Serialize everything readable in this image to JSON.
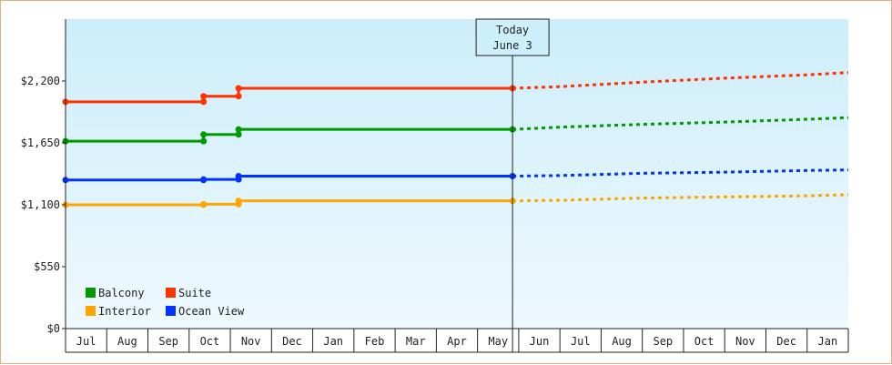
{
  "chart_data": {
    "type": "line",
    "x_labels": [
      "Jul",
      "Aug",
      "Sep",
      "Oct",
      "Nov",
      "Dec",
      "Jan",
      "Feb",
      "Mar",
      "Apr",
      "May",
      "Jun",
      "Jul",
      "Aug",
      "Sep",
      "Oct",
      "Nov",
      "Dec",
      "Jan"
    ],
    "yticks": [
      "$0",
      "$550",
      "$1,100",
      "$1,650",
      "$2,200"
    ],
    "ylim": [
      0,
      2750
    ],
    "xlim": [
      0,
      19
    ],
    "today": {
      "line1": "Today",
      "line2": "June 3",
      "x": 10.85
    },
    "series": [
      {
        "name": "Suite",
        "color": "#ff3300",
        "actual": [
          [
            0,
            2015
          ],
          [
            3.35,
            2015
          ],
          [
            3.35,
            2065
          ],
          [
            4.2,
            2065
          ],
          [
            4.2,
            2135
          ],
          [
            10.85,
            2135
          ]
        ],
        "forecast": [
          [
            10.85,
            2135
          ],
          [
            12,
            2150
          ],
          [
            14,
            2190
          ],
          [
            16,
            2225
          ],
          [
            18,
            2255
          ],
          [
            19,
            2275
          ]
        ]
      },
      {
        "name": "Balcony",
        "color": "#009900",
        "actual": [
          [
            0,
            1665
          ],
          [
            3.35,
            1665
          ],
          [
            3.35,
            1725
          ],
          [
            4.2,
            1725
          ],
          [
            4.2,
            1770
          ],
          [
            10.85,
            1770
          ]
        ],
        "forecast": [
          [
            10.85,
            1770
          ],
          [
            12,
            1790
          ],
          [
            14,
            1815
          ],
          [
            16,
            1835
          ],
          [
            18,
            1860
          ],
          [
            19,
            1875
          ]
        ]
      },
      {
        "name": "Ocean View",
        "color": "#0033ff",
        "actual": [
          [
            0,
            1320
          ],
          [
            3.35,
            1320
          ],
          [
            3.35,
            1325
          ],
          [
            4.2,
            1325
          ],
          [
            4.2,
            1355
          ],
          [
            10.85,
            1355
          ]
        ],
        "forecast": [
          [
            10.85,
            1355
          ],
          [
            12,
            1360
          ],
          [
            14,
            1380
          ],
          [
            16,
            1390
          ],
          [
            18,
            1405
          ],
          [
            19,
            1410
          ]
        ]
      },
      {
        "name": "Interior",
        "color": "#ffa500",
        "actual": [
          [
            0,
            1100
          ],
          [
            3.35,
            1100
          ],
          [
            3.35,
            1105
          ],
          [
            4.2,
            1105
          ],
          [
            4.2,
            1135
          ],
          [
            10.85,
            1135
          ]
        ],
        "forecast": [
          [
            10.85,
            1135
          ],
          [
            12,
            1140
          ],
          [
            14,
            1160
          ],
          [
            16,
            1170
          ],
          [
            18,
            1180
          ],
          [
            19,
            1190
          ]
        ]
      }
    ],
    "legend": [
      [
        "Balcony",
        "Suite"
      ],
      [
        "Interior",
        "Ocean View"
      ]
    ],
    "grid": false,
    "legend_position": "bottom-left"
  }
}
